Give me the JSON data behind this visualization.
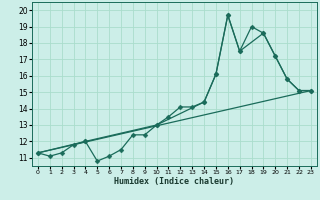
{
  "title": "",
  "xlabel": "Humidex (Indice chaleur)",
  "bg_color": "#cceee8",
  "grid_color": "#aaddcc",
  "line_color": "#1a6b5a",
  "xlim": [
    -0.5,
    23.5
  ],
  "ylim": [
    10.5,
    20.5
  ],
  "xticks": [
    0,
    1,
    2,
    3,
    4,
    5,
    6,
    7,
    8,
    9,
    10,
    11,
    12,
    13,
    14,
    15,
    16,
    17,
    18,
    19,
    20,
    21,
    22,
    23
  ],
  "yticks": [
    11,
    12,
    13,
    14,
    15,
    16,
    17,
    18,
    19,
    20
  ],
  "line1_x": [
    0,
    1,
    2,
    3,
    4,
    5,
    6,
    7,
    8,
    9,
    10,
    11,
    12,
    13,
    14,
    15,
    16,
    17,
    18,
    19,
    20,
    21,
    22,
    23
  ],
  "line1_y": [
    11.3,
    11.1,
    11.3,
    11.8,
    12.0,
    10.8,
    11.1,
    11.5,
    12.4,
    12.4,
    13.0,
    13.5,
    14.1,
    14.1,
    14.4,
    16.1,
    19.7,
    17.5,
    19.0,
    18.6,
    17.2,
    15.8,
    15.1,
    15.1
  ],
  "line2_x": [
    0,
    4,
    10,
    14,
    15,
    16,
    17,
    19,
    20,
    21,
    22,
    23
  ],
  "line2_y": [
    11.3,
    12.0,
    13.0,
    14.4,
    16.1,
    19.7,
    17.5,
    18.6,
    17.2,
    15.8,
    15.1,
    15.1
  ],
  "line3_x": [
    0,
    23
  ],
  "line3_y": [
    11.3,
    15.1
  ],
  "marker_size": 2.5,
  "linewidth": 0.9
}
